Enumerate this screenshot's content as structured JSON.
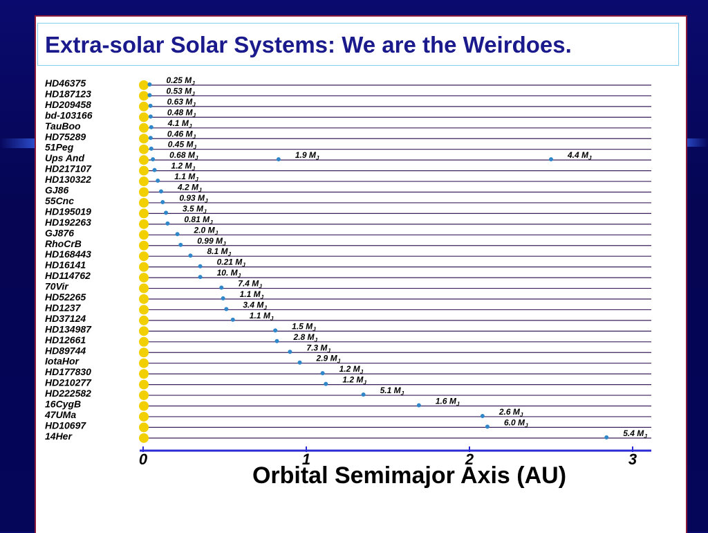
{
  "slide": {
    "title": "Extra-solar Solar Systems: We are the Weirdoes."
  },
  "colors": {
    "background": "#05055a",
    "title_text": "#1a1a8c",
    "row_line": "#3a1f5a",
    "axis_line": "#2b2bd6",
    "sun": "#f2d000",
    "planet": "#2f86c8"
  },
  "chart_data": {
    "type": "scatter",
    "title": "",
    "xlabel": "Orbital Semimajor Axis  (AU)",
    "ylabel": "",
    "xlim": [
      0,
      3.1
    ],
    "xticks": [
      0,
      1,
      2,
      3
    ],
    "grid": "horizontal rows per star",
    "legend": "none",
    "systems": [
      {
        "star": "HD46375",
        "planets": [
          {
            "a": 0.04,
            "mass": "0.25 M"
          }
        ]
      },
      {
        "star": "HD187123",
        "planets": [
          {
            "a": 0.04,
            "mass": "0.53 M"
          }
        ]
      },
      {
        "star": "HD209458",
        "planets": [
          {
            "a": 0.045,
            "mass": "0.63 M"
          }
        ]
      },
      {
        "star": "bd-103166",
        "planets": [
          {
            "a": 0.046,
            "mass": "0.48 M"
          }
        ]
      },
      {
        "star": "TauBoo",
        "planets": [
          {
            "a": 0.05,
            "mass": "4.1 M"
          }
        ]
      },
      {
        "star": "HD75289",
        "planets": [
          {
            "a": 0.046,
            "mass": "0.46 M"
          }
        ]
      },
      {
        "star": "51Peg",
        "planets": [
          {
            "a": 0.05,
            "mass": "0.45 M"
          }
        ]
      },
      {
        "star": "Ups And",
        "planets": [
          {
            "a": 0.06,
            "mass": "0.68 M"
          },
          {
            "a": 0.83,
            "mass": "1.9 M"
          },
          {
            "a": 2.5,
            "mass": "4.4 M"
          }
        ]
      },
      {
        "star": "HD217107",
        "planets": [
          {
            "a": 0.07,
            "mass": "1.2 M"
          }
        ]
      },
      {
        "star": "HD130322",
        "planets": [
          {
            "a": 0.09,
            "mass": "1.1 M"
          }
        ]
      },
      {
        "star": "GJ86",
        "planets": [
          {
            "a": 0.11,
            "mass": "4.2 M"
          }
        ]
      },
      {
        "star": "55Cnc",
        "planets": [
          {
            "a": 0.12,
            "mass": "0.93 M"
          }
        ]
      },
      {
        "star": "HD195019",
        "planets": [
          {
            "a": 0.14,
            "mass": "3.5 M"
          }
        ]
      },
      {
        "star": "HD192263",
        "planets": [
          {
            "a": 0.15,
            "mass": "0.81 M"
          }
        ]
      },
      {
        "star": "GJ876",
        "planets": [
          {
            "a": 0.21,
            "mass": "2.0 M"
          }
        ]
      },
      {
        "star": "RhoCrB",
        "planets": [
          {
            "a": 0.23,
            "mass": "0.99 M"
          }
        ]
      },
      {
        "star": "HD168443",
        "planets": [
          {
            "a": 0.29,
            "mass": "8.1 M"
          }
        ]
      },
      {
        "star": "HD16141",
        "planets": [
          {
            "a": 0.35,
            "mass": "0.21 M"
          }
        ]
      },
      {
        "star": "HD114762",
        "planets": [
          {
            "a": 0.35,
            "mass": "10. M"
          }
        ]
      },
      {
        "star": "70Vir",
        "planets": [
          {
            "a": 0.48,
            "mass": "7.4 M"
          }
        ]
      },
      {
        "star": "HD52265",
        "planets": [
          {
            "a": 0.49,
            "mass": "1.1 M"
          }
        ]
      },
      {
        "star": "HD1237",
        "planets": [
          {
            "a": 0.51,
            "mass": "3.4 M"
          }
        ]
      },
      {
        "star": "HD37124",
        "planets": [
          {
            "a": 0.55,
            "mass": "1.1 M"
          }
        ]
      },
      {
        "star": "HD134987",
        "planets": [
          {
            "a": 0.81,
            "mass": "1.5 M"
          }
        ]
      },
      {
        "star": "HD12661",
        "planets": [
          {
            "a": 0.82,
            "mass": "2.8 M"
          }
        ]
      },
      {
        "star": "HD89744",
        "planets": [
          {
            "a": 0.9,
            "mass": "7.3 M"
          }
        ]
      },
      {
        "star": "IotaHor",
        "planets": [
          {
            "a": 0.96,
            "mass": "2.9 M"
          }
        ]
      },
      {
        "star": "HD177830",
        "planets": [
          {
            "a": 1.1,
            "mass": "1.2 M"
          }
        ]
      },
      {
        "star": "HD210277",
        "planets": [
          {
            "a": 1.12,
            "mass": "1.2 M"
          }
        ]
      },
      {
        "star": "HD222582",
        "planets": [
          {
            "a": 1.35,
            "mass": "5.1 M"
          }
        ]
      },
      {
        "star": "16CygB",
        "planets": [
          {
            "a": 1.69,
            "mass": "1.6 M"
          }
        ]
      },
      {
        "star": "47UMa",
        "planets": [
          {
            "a": 2.08,
            "mass": "2.6 M"
          }
        ]
      },
      {
        "star": "HD10697",
        "planets": [
          {
            "a": 2.11,
            "mass": "6.0 M"
          }
        ]
      },
      {
        "star": "14Her",
        "planets": [
          {
            "a": 2.84,
            "mass": "5.4 M"
          }
        ]
      }
    ],
    "mass_unit_subscript": "J"
  }
}
